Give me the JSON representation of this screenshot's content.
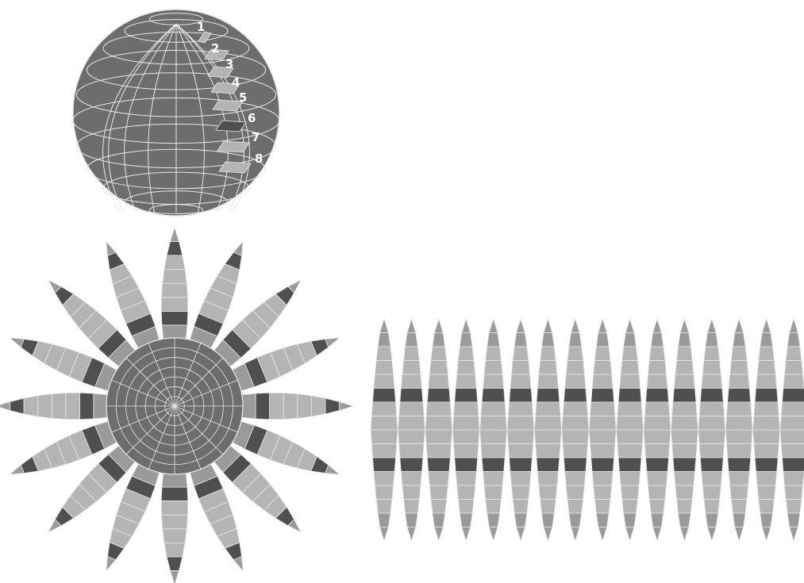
{
  "diagram": {
    "sphere_labels": [
      "1",
      "2",
      "3",
      "4",
      "5",
      "6",
      "7",
      "8"
    ],
    "colors": {
      "background": "#ffffff",
      "sphere_fill": "#6d6d6d",
      "grid_line": "#e8e8e8",
      "band_light": "#b4b4b4",
      "band_mid": "#9a9a9a",
      "band_dark": "#4f4f4f",
      "label": "#ffffff"
    }
  }
}
